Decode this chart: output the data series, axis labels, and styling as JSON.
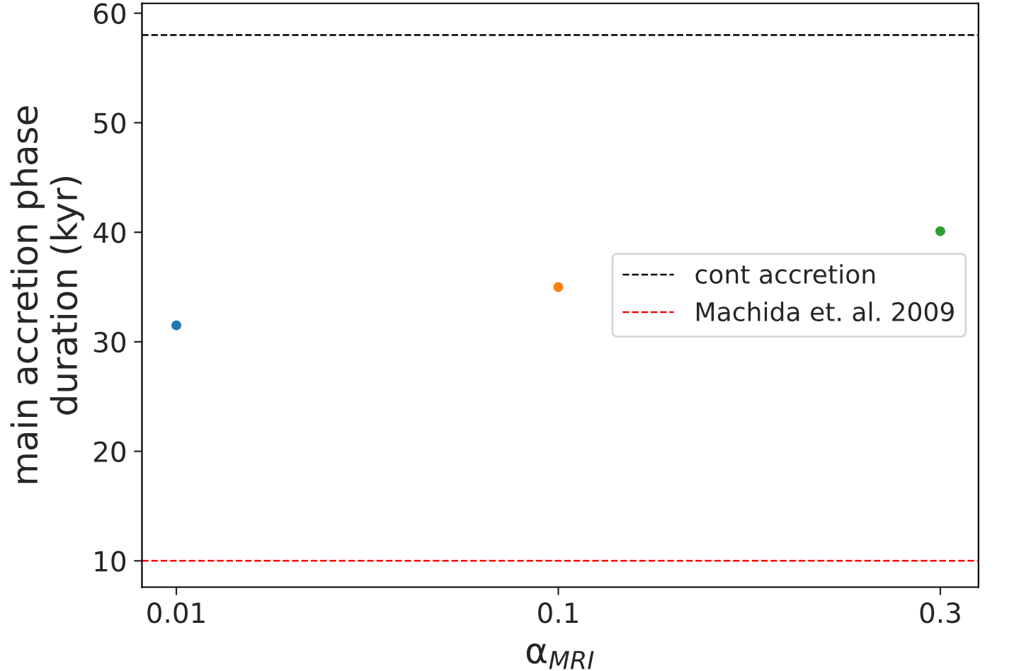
{
  "chart_data": {
    "type": "scatter",
    "xlabel": "α$_{MRI}$",
    "ylabel": "main accretion phase\nduration (kyr)",
    "categories": [
      "0.01",
      "0.1",
      "0.3"
    ],
    "values": [
      31.5,
      35.0,
      40.1
    ],
    "colors": [
      "#1f77b4",
      "#ff7f0e",
      "#2ca02c"
    ],
    "ylim": [
      7.6,
      60.9
    ],
    "yticks": [
      10,
      20,
      30,
      40,
      50,
      60
    ],
    "ref_lines": [
      {
        "axis": "y",
        "value": 58,
        "label": "cont accretion",
        "color": "#000000",
        "line_style": "dashed"
      },
      {
        "axis": "y",
        "value": 10,
        "label": "Machida et. al. 2009",
        "color": "#ff0000",
        "line_style": "dashed"
      }
    ],
    "legend": "center right",
    "grid": false
  }
}
